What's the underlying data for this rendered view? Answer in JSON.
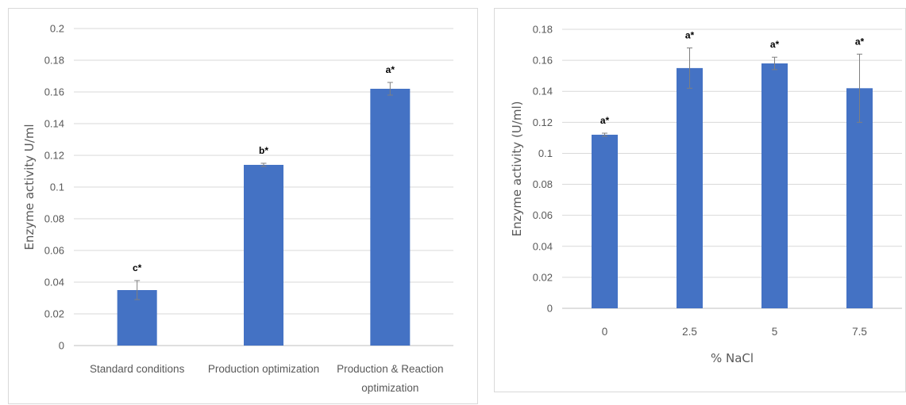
{
  "chart_data": [
    {
      "type": "bar",
      "xlabel": "",
      "ylabel": "Enzyme activity U/ml",
      "ylim": [
        0,
        0.2
      ],
      "ytick_step": 0.02,
      "yticks": [
        "0",
        "0.02",
        "0.04",
        "0.06",
        "0.08",
        "0.1",
        "0.12",
        "0.14",
        "0.16",
        "0.18",
        "0.2"
      ],
      "grid": true,
      "categories": [
        [
          "Standard conditions"
        ],
        [
          "Production optimization"
        ],
        [
          "Production & Reaction",
          "optimization"
        ]
      ],
      "values": [
        0.035,
        0.114,
        0.162
      ],
      "errors": [
        0.006,
        0.001,
        0.004
      ],
      "annotations": [
        "c*",
        "b*",
        "a*"
      ],
      "bar_color": "#4472C4"
    },
    {
      "type": "bar",
      "xlabel": "% NaCl",
      "ylabel": "Enzyme activity (U/ml)",
      "ylim": [
        0,
        0.18
      ],
      "ytick_step": 0.02,
      "yticks": [
        "0",
        "0.02",
        "0.04",
        "0.06",
        "0.08",
        "0.1",
        "0.12",
        "0.14",
        "0.16",
        "0.18"
      ],
      "grid": true,
      "categories": [
        [
          "0"
        ],
        [
          "2.5"
        ],
        [
          "5"
        ],
        [
          "7.5"
        ]
      ],
      "values": [
        0.112,
        0.155,
        0.158,
        0.142
      ],
      "errors": [
        0.001,
        0.013,
        0.004,
        0.022
      ],
      "annotations": [
        "a*",
        "a*",
        "a*",
        "a*"
      ],
      "bar_color": "#4472C4"
    }
  ]
}
